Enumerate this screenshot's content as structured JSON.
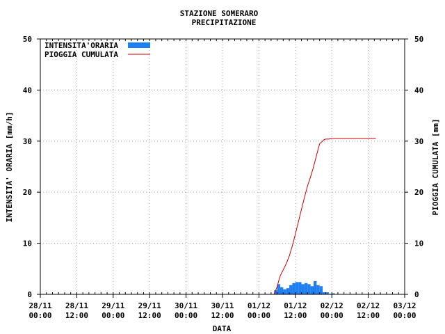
{
  "chart_data": {
    "type": "bar+line",
    "title": "STAZIONE SOMERARO",
    "subtitle": "PRECIPITAZIONE",
    "xlabel": "DATA",
    "ylabel_left": "INTENSITA' ORARIA [mm/h]",
    "ylabel_right": "PIOGGIA CUMULATA [mm]",
    "ylim": [
      0,
      50
    ],
    "y_ticks": [
      "0",
      "10",
      "20",
      "30",
      "40",
      "50"
    ],
    "x_ticks": [
      {
        "date": "28/11",
        "time": "00:00"
      },
      {
        "date": "28/11",
        "time": "12:00"
      },
      {
        "date": "29/11",
        "time": "00:00"
      },
      {
        "date": "29/11",
        "time": "12:00"
      },
      {
        "date": "30/11",
        "time": "00:00"
      },
      {
        "date": "30/11",
        "time": "12:00"
      },
      {
        "date": "01/12",
        "time": "00:00"
      },
      {
        "date": "01/12",
        "time": "12:00"
      },
      {
        "date": "02/12",
        "time": "00:00"
      },
      {
        "date": "02/12",
        "time": "12:00"
      },
      {
        "date": "03/12",
        "time": "00:00"
      }
    ],
    "xlim_hours": [
      0,
      120
    ],
    "grid": true,
    "legend_position": "top-left",
    "series": [
      {
        "name": "INTENSITA'ORARIA",
        "kind": "bar",
        "color": "#1e7ff0",
        "hours": [
          78,
          79,
          80,
          81,
          82,
          83,
          84,
          85,
          86,
          87,
          88,
          89,
          90,
          91,
          92,
          93,
          94,
          95,
          96,
          97
        ],
        "values": [
          0.8,
          2.0,
          1.4,
          1.0,
          1.2,
          1.8,
          2.2,
          2.4,
          2.4,
          2.0,
          2.2,
          2.0,
          1.6,
          2.6,
          1.8,
          1.6,
          0.4,
          0.4,
          0.1,
          0.2
        ]
      },
      {
        "name": "PIOGGIA CUMULATA",
        "kind": "line",
        "color": "#cc0000",
        "hours": [
          77,
          78,
          78.5,
          79,
          80,
          81,
          82,
          83,
          84,
          85,
          86,
          87,
          88,
          89,
          90,
          91,
          92,
          93,
          93.5,
          94,
          95,
          96,
          97,
          98,
          100,
          104,
          108,
          110.5
        ],
        "values": [
          0,
          1.5,
          2.6,
          3.6,
          4.8,
          6.0,
          7.5,
          9.5,
          11.8,
          14.2,
          16.6,
          19.0,
          21.2,
          23.0,
          25.0,
          27.3,
          29.5,
          30.0,
          30.3,
          30.4,
          30.4,
          30.5,
          30.5,
          30.5,
          30.5,
          30.5,
          30.5,
          30.5
        ]
      }
    ]
  }
}
